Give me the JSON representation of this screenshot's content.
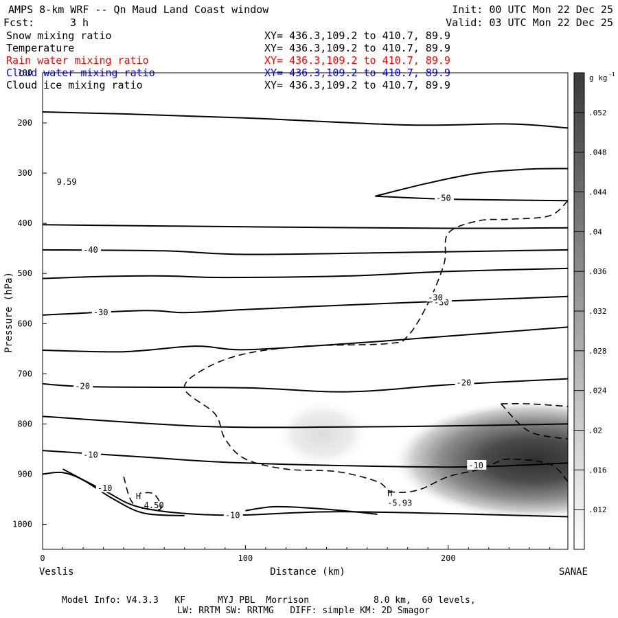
{
  "header": {
    "title": "AMPS 8-km WRF -- Qn Maud Land Coast window",
    "fcst_label": "Fcst:",
    "fcst_value": "3 h",
    "init": "Init: 00 UTC Mon 22 Dec 25",
    "valid": "Valid: 03 UTC Mon 22 Dec 25"
  },
  "fields": [
    {
      "name": "Snow mixing ratio",
      "xy": "XY= 436.3,109.2 to 410.7, 89.9",
      "color": "#000000"
    },
    {
      "name": "Temperature",
      "xy": "XY= 436.3,109.2 to 410.7, 89.9",
      "color": "#000000"
    },
    {
      "name": "Rain water mixing ratio",
      "xy": "XY= 436.3,109.2 to 410.7, 89.9",
      "color": "#ff0000"
    },
    {
      "name": "Cloud water mixing ratio",
      "xy": "XY= 436.3,109.2 to 410.7, 89.9",
      "color": "#0000ff"
    },
    {
      "name": "Cloud ice mixing ratio",
      "xy": "XY= 436.3,109.2 to 410.7, 89.9",
      "color": "#000000"
    }
  ],
  "chart_data": {
    "type": "contour-cross-section",
    "xlabel": "Distance (km)",
    "ylabel": "Pressure (hPa)",
    "xlim": [
      0,
      259
    ],
    "ylim": [
      100,
      1050
    ],
    "x_ticks": [
      0,
      100,
      200
    ],
    "y_ticks": [
      100,
      200,
      300,
      400,
      500,
      600,
      700,
      800,
      900,
      1000
    ],
    "left_endpoint": "Veslis",
    "right_endpoint": "SANAE",
    "colorbar": {
      "unit_label": "g kg",
      "unit_exponent": "-1",
      "range": [
        0.008,
        0.056
      ],
      "ticks": [
        ".012",
        ".016",
        ".02",
        ".024",
        ".028",
        ".032",
        ".036",
        ".04",
        ".044",
        ".048",
        ".052"
      ]
    },
    "isotherms": [
      {
        "points": [
          [
            0,
            178
          ],
          [
            40,
            182
          ],
          [
            100,
            190
          ],
          [
            180,
            204
          ],
          [
            230,
            202
          ],
          [
            259,
            210
          ]
        ]
      },
      {
        "points": [
          [
            164,
            346
          ],
          [
            190,
            320
          ],
          [
            215,
            300
          ],
          [
            240,
            292
          ],
          [
            259,
            291
          ]
        ]
      },
      {
        "points": [
          [
            164,
            346
          ],
          [
            200,
            352
          ],
          [
            259,
            355
          ]
        ],
        "label": "-50",
        "label_at": [
          194,
          350
        ]
      },
      {
        "points": [
          [
            0,
            403
          ],
          [
            100,
            407
          ],
          [
            200,
            410
          ],
          [
            259,
            409
          ]
        ]
      },
      {
        "points": [
          [
            0,
            453
          ],
          [
            60,
            455
          ],
          [
            100,
            462
          ],
          [
            180,
            458
          ],
          [
            259,
            453
          ]
        ],
        "label": "-40",
        "label_at": [
          20,
          453
        ]
      },
      {
        "points": [
          [
            0,
            510
          ],
          [
            30,
            506
          ],
          [
            60,
            505
          ],
          [
            90,
            508
          ],
          [
            150,
            505
          ],
          [
            200,
            496
          ],
          [
            259,
            490
          ]
        ]
      },
      {
        "points": [
          [
            0,
            583
          ],
          [
            50,
            574
          ],
          [
            70,
            578
          ],
          [
            100,
            572
          ],
          [
            150,
            563
          ],
          [
            200,
            555
          ],
          [
            259,
            546
          ]
        ],
        "label": "-30",
        "label_at": [
          25,
          578
        ],
        "label2": "-30",
        "label2_at": [
          193,
          558
        ]
      },
      {
        "points": [
          [
            0,
            653
          ],
          [
            40,
            656
          ],
          [
            75,
            645
          ],
          [
            100,
            652
          ],
          [
            150,
            640
          ],
          [
            200,
            625
          ],
          [
            259,
            607
          ]
        ]
      },
      {
        "points": [
          [
            0,
            720
          ],
          [
            25,
            726
          ],
          [
            100,
            728
          ],
          [
            150,
            736
          ],
          [
            200,
            722
          ],
          [
            259,
            710
          ]
        ],
        "label": "-20",
        "label_at": [
          16,
          725
        ],
        "label2": "-20",
        "label2_at": [
          204,
          718
        ]
      },
      {
        "points": [
          [
            0,
            785
          ],
          [
            80,
            805
          ],
          [
            150,
            806
          ],
          [
            200,
            804
          ],
          [
            259,
            800
          ]
        ]
      },
      {
        "points": [
          [
            0,
            853
          ],
          [
            50,
            866
          ],
          [
            100,
            878
          ],
          [
            200,
            886
          ],
          [
            259,
            878
          ]
        ],
        "label": "-10",
        "label_at": [
          20,
          862
        ],
        "label2": "-10",
        "label2_at": [
          210,
          883
        ]
      },
      {
        "points": [
          [
            10,
            890
          ],
          [
            30,
            932
          ],
          [
            50,
            968
          ],
          [
            90,
            982
          ],
          [
            150,
            975
          ],
          [
            259,
            985
          ]
        ]
      },
      {
        "points": [
          [
            0,
            900
          ],
          [
            10,
            897
          ],
          [
            20,
            912
          ],
          [
            35,
            950
          ],
          [
            50,
            978
          ],
          [
            70,
            983
          ]
        ],
        "label": "-10",
        "label_at": [
          27,
          928
        ]
      },
      {
        "points": [
          [
            100,
            973
          ],
          [
            115,
            965
          ],
          [
            140,
            970
          ],
          [
            165,
            980
          ]
        ],
        "label": "-10",
        "label_at": [
          90,
          982
        ]
      }
    ],
    "snow_contours_dashed": [
      {
        "points": [
          [
            259,
            355
          ],
          [
            250,
            385
          ],
          [
            230,
            392
          ],
          [
            215,
            395
          ],
          [
            200,
            420
          ],
          [
            198,
            480
          ],
          [
            190,
            560
          ],
          [
            180,
            625
          ],
          [
            170,
            640
          ],
          [
            130,
            645
          ],
          [
            100,
            660
          ],
          [
            80,
            690
          ],
          [
            70,
            730
          ],
          [
            85,
            780
          ],
          [
            90,
            830
          ],
          [
            100,
            870
          ],
          [
            120,
            890
          ],
          [
            145,
            895
          ],
          [
            165,
            915
          ],
          [
            172,
            935
          ],
          [
            185,
            932
          ],
          [
            200,
            905
          ],
          [
            214,
            892
          ],
          [
            222,
            880
          ],
          [
            230,
            870
          ],
          [
            250,
            880
          ],
          [
            259,
            915
          ]
        ],
        "label": "-30",
        "label_at": [
          190,
          548
        ]
      },
      {
        "points": [
          [
            226,
            760
          ],
          [
            240,
            760
          ],
          [
            259,
            765
          ]
        ]
      },
      {
        "points": [
          [
            226,
            760
          ],
          [
            240,
            815
          ],
          [
            259,
            830
          ]
        ]
      },
      {
        "points": [
          [
            40,
            905
          ],
          [
            45,
            960
          ],
          [
            58,
            970
          ],
          [
            55,
            940
          ],
          [
            48,
            938
          ]
        ]
      }
    ],
    "shading": [
      {
        "x": 242,
        "p": 872,
        "rx": 70,
        "ry": 120,
        "value": 0.056
      },
      {
        "x": 138,
        "p": 820,
        "rx": 24,
        "ry": 70,
        "value": 0.012
      }
    ],
    "annotations": [
      {
        "text": "H",
        "x": 46,
        "p": 950
      },
      {
        "text": "4.50",
        "x": 50,
        "p": 968
      },
      {
        "text": "H",
        "x": 170,
        "p": 944
      },
      {
        "text": "-5.93",
        "x": 170,
        "p": 963
      },
      {
        "text": "9.59",
        "x": 7,
        "p": 323
      }
    ]
  },
  "footer": {
    "line1": "Model Info: V4.3.3   KF      MYJ PBL  Morrison            8.0 km,  60 levels,",
    "line2": "LW: RRTM SW: RRTMG   DIFF: simple KM: 2D Smagor"
  }
}
